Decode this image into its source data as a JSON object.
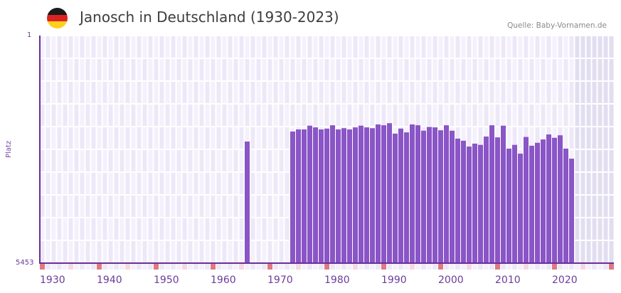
{
  "header": {
    "title": "Janosch in Deutschland (1930-2023)",
    "source": "Quelle: Baby-Vornamen.de",
    "flag_colors": [
      "#1a1a1a",
      "#dd2222",
      "#fcd01e"
    ]
  },
  "colors": {
    "bar": "#8a55c7",
    "axis": "#6a2f9a",
    "grid_cell_a": "#ede8f8",
    "grid_cell_b": "#f4f1fc",
    "future_cell": "#e2def0",
    "decade_marker": "#e17880",
    "half_decade_marker": "#f6d8e0"
  },
  "chart_data": {
    "type": "bar",
    "title": "Janosch in Deutschland (1930-2023)",
    "xlabel": "",
    "ylabel": "Platz",
    "y_axis_inverted": true,
    "ylim": [
      1,
      5453
    ],
    "y_tick_labels": [
      "1",
      "5453"
    ],
    "x_range": [
      1930,
      2030
    ],
    "x_tick_labels": [
      "1930",
      "1940",
      "1950",
      "1960",
      "1970",
      "1980",
      "1990",
      "2000",
      "2010",
      "2020"
    ],
    "future_shaded_from": 2024,
    "grid": true,
    "legend": null,
    "x": [
      1966,
      1974,
      1975,
      1976,
      1977,
      1978,
      1979,
      1980,
      1981,
      1982,
      1983,
      1984,
      1985,
      1986,
      1987,
      1988,
      1989,
      1990,
      1991,
      1992,
      1993,
      1994,
      1995,
      1996,
      1997,
      1998,
      1999,
      2000,
      2001,
      2002,
      2003,
      2004,
      2005,
      2006,
      2007,
      2008,
      2009,
      2010,
      2011,
      2012,
      2013,
      2014,
      2015,
      2016,
      2017,
      2018,
      2019,
      2020,
      2021,
      2022,
      2023
    ],
    "values": [
      2540,
      2300,
      2250,
      2250,
      2160,
      2200,
      2250,
      2230,
      2150,
      2250,
      2220,
      2250,
      2200,
      2160,
      2200,
      2220,
      2130,
      2150,
      2100,
      2350,
      2230,
      2320,
      2130,
      2150,
      2280,
      2190,
      2200,
      2270,
      2150,
      2280,
      2470,
      2520,
      2660,
      2590,
      2620,
      2420,
      2150,
      2440,
      2160,
      2710,
      2620,
      2830,
      2430,
      2640,
      2570,
      2490,
      2370,
      2450,
      2390,
      2710,
      2950
    ]
  },
  "labels": {
    "y_top": "1",
    "y_bottom": "5453",
    "y_title": "Platz"
  }
}
